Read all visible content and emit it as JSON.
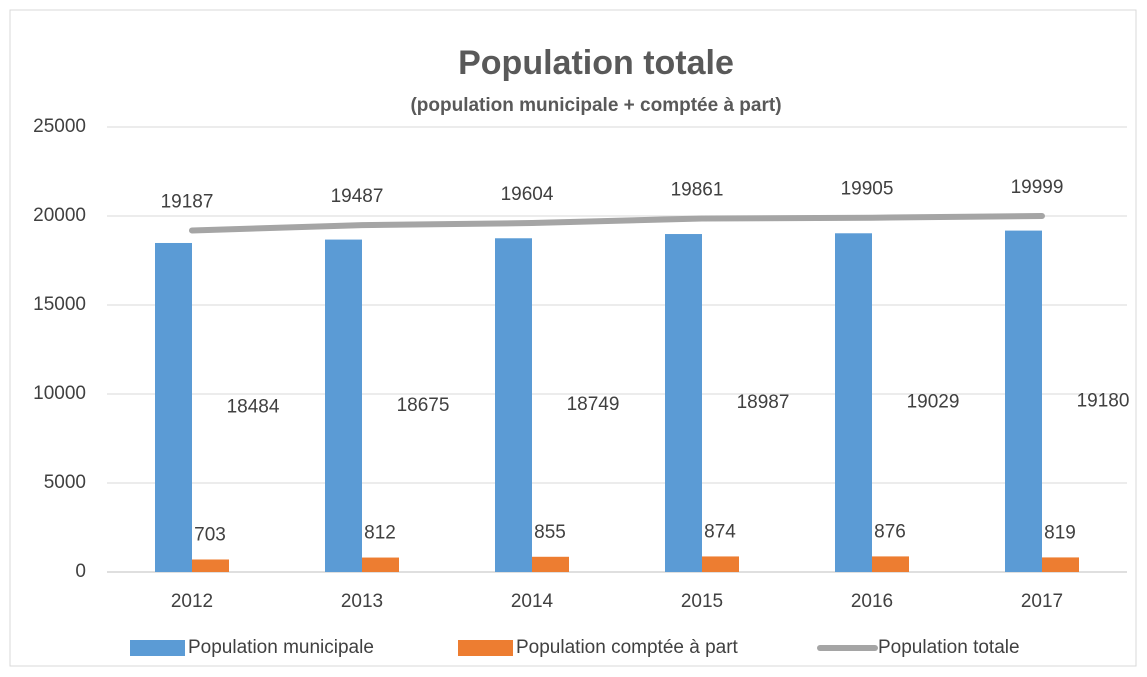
{
  "chart_data": {
    "type": "bar",
    "title": "Population totale",
    "subtitle": "(population municipale + comptée à part)",
    "categories": [
      "2012",
      "2013",
      "2014",
      "2015",
      "2016",
      "2017"
    ],
    "series": [
      {
        "name": "Population municipale",
        "color": "#5b9bd5",
        "values": [
          18484,
          18675,
          18749,
          18987,
          19029,
          19180
        ]
      },
      {
        "name": "Population comptée à part",
        "color": "#ed7d31",
        "values": [
          703,
          812,
          855,
          874,
          876,
          819
        ]
      },
      {
        "name": "Population totale",
        "color": "#a5a5a5",
        "type": "line",
        "values": [
          19187,
          19487,
          19604,
          19861,
          19905,
          19999
        ]
      }
    ],
    "ylim": [
      0,
      25000
    ],
    "yticks": [
      0,
      5000,
      10000,
      15000,
      20000,
      25000
    ],
    "grid": true,
    "legend": "bottom"
  }
}
